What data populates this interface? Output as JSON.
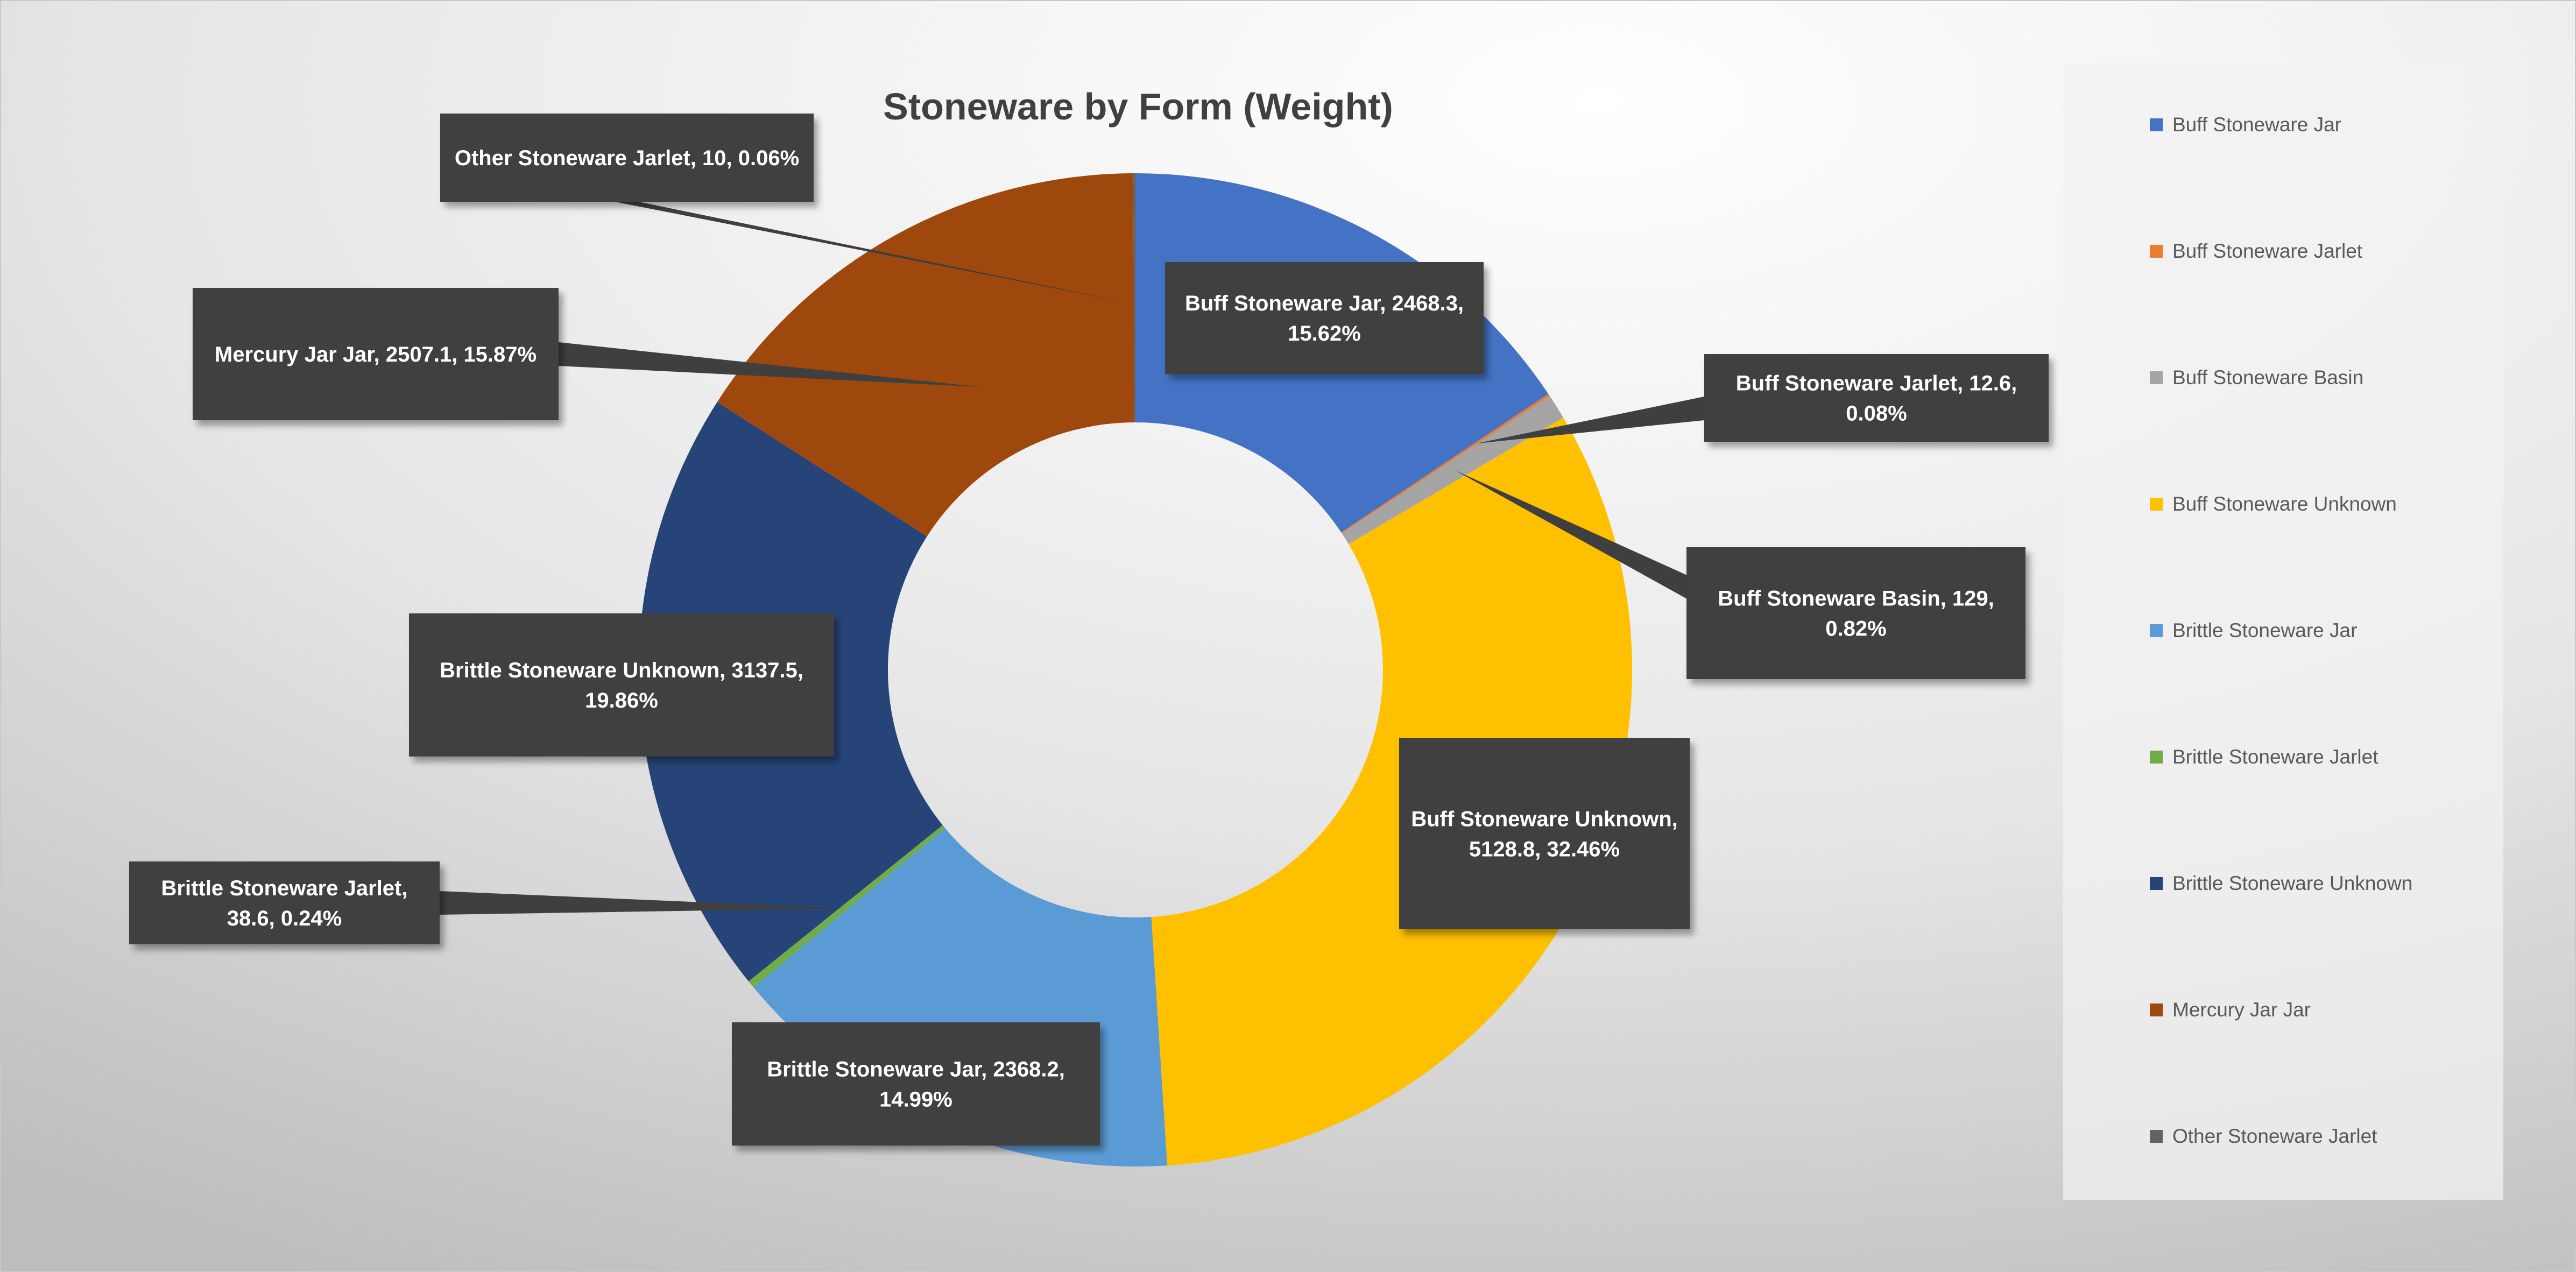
{
  "chart_data": {
    "type": "pie",
    "subtype": "doughnut",
    "title": "Stoneware by Form (Weight)",
    "legend_position": "right",
    "start_angle_deg": 0,
    "direction": "clockwise",
    "slices": [
      {
        "label": "Buff Stoneware Jar",
        "value": 2468.3,
        "percent": "15.62%",
        "color": "#4472C4"
      },
      {
        "label": "Buff Stoneware Jarlet",
        "value": 12.6,
        "percent": "0.08%",
        "color": "#ED7D31"
      },
      {
        "label": "Buff Stoneware Basin",
        "value": 129,
        "percent": "0.82%",
        "color": "#A5A5A5"
      },
      {
        "label": "Buff Stoneware Unknown",
        "value": 5128.8,
        "percent": "32.46%",
        "color": "#FFC000"
      },
      {
        "label": "Brittle Stoneware Jar",
        "value": 2368.2,
        "percent": "14.99%",
        "color": "#5B9BD5"
      },
      {
        "label": "Brittle Stoneware Jarlet",
        "value": 38.6,
        "percent": "0.24%",
        "color": "#70AD47"
      },
      {
        "label": "Brittle Stoneware Unknown",
        "value": 3137.5,
        "percent": "19.86%",
        "color": "#264478"
      },
      {
        "label": "Mercury Jar Jar",
        "value": 2507.1,
        "percent": "15.87%",
        "color": "#9E480E"
      },
      {
        "label": "Other Stoneware Jarlet",
        "value": 10,
        "percent": "0.06%",
        "color": "#636363"
      }
    ],
    "data_labels": [
      "Buff Stoneware Jar, 2468.3, 15.62%",
      "Buff Stoneware Jarlet, 12.6, 0.08%",
      "Buff Stoneware Basin, 129, 0.82%",
      "Buff Stoneware Unknown, 5128.8, 32.46%",
      "Brittle Stoneware Jar, 2368.2, 14.99%",
      "Brittle Stoneware Jarlet, 38.6, 0.24%",
      "Brittle Stoneware Unknown, 3137.5, 19.86%",
      "Mercury Jar Jar, 2507.1, 15.87%",
      "Other Stoneware Jarlet, 10, 0.06%"
    ]
  }
}
